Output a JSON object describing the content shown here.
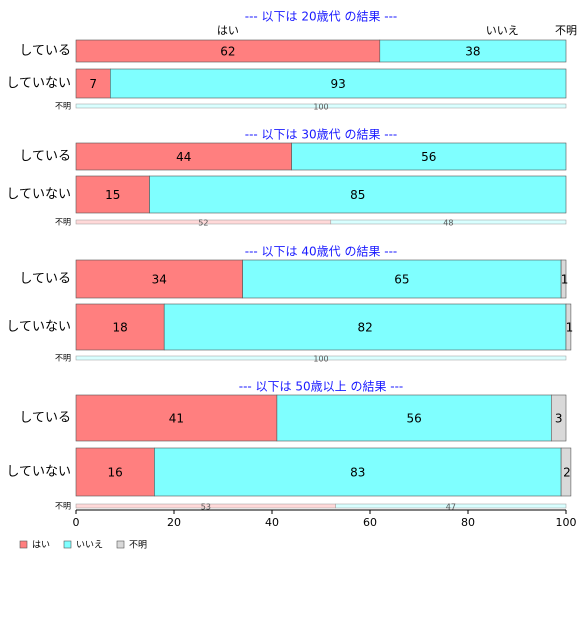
{
  "chart_data": {
    "type": "bar",
    "stacked": true,
    "orientation": "horizontal",
    "series": [
      {
        "name": "はい",
        "color": "#ff7f7f"
      },
      {
        "name": "いいえ",
        "color": "#7fffff"
      },
      {
        "name": "不明",
        "color": "#d9d9d9"
      }
    ],
    "top_header_labels": [
      "はい",
      "いいえ",
      "不明"
    ],
    "xlim": [
      0,
      100
    ],
    "xticks": [
      "0",
      "20",
      "40",
      "60",
      "80",
      "100"
    ],
    "legend_position": "bottom-left",
    "panels": [
      {
        "title": "--- 以下は 20歳代 の結果 ---",
        "categories": [
          "している",
          "していない"
        ],
        "values": [
          [
            62,
            38,
            0
          ],
          [
            7,
            93,
            0
          ]
        ],
        "unknown_label": "不明",
        "unknown_values": [
          0,
          100
        ]
      },
      {
        "title": "--- 以下は 30歳代 の結果 ---",
        "categories": [
          "している",
          "していない"
        ],
        "values": [
          [
            44,
            56,
            0
          ],
          [
            15,
            85,
            0
          ]
        ],
        "unknown_label": "不明",
        "unknown_values": [
          52,
          48
        ]
      },
      {
        "title": "--- 以下は 40歳代 の結果 ---",
        "categories": [
          "している",
          "していない"
        ],
        "values": [
          [
            34,
            65,
            1
          ],
          [
            18,
            82,
            1
          ]
        ],
        "unknown_label": "不明",
        "unknown_values": [
          0,
          100
        ]
      },
      {
        "title": "--- 以下は 50歳以上 の結果 ---",
        "categories": [
          "している",
          "していない"
        ],
        "values": [
          [
            41,
            56,
            3
          ],
          [
            16,
            83,
            2
          ]
        ],
        "unknown_label": "不明",
        "unknown_values": [
          53,
          47
        ]
      }
    ]
  }
}
